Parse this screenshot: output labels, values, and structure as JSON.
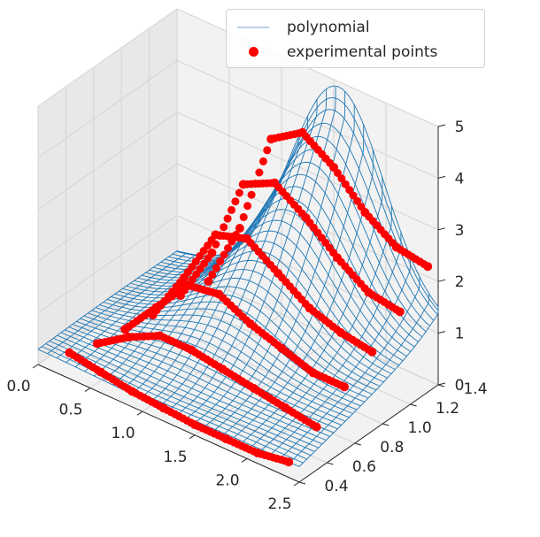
{
  "chart_data": {
    "type": "surface3d",
    "title": "",
    "xlabel": "",
    "ylabel": "",
    "zlabel": "",
    "xlim": [
      0.0,
      2.5
    ],
    "ylim": [
      0.4,
      1.4
    ],
    "zlim": [
      0,
      5
    ],
    "x_ticks": [
      "0.0",
      "0.5",
      "1.0",
      "1.5",
      "2.0",
      "2.5"
    ],
    "y_ticks": [
      "0.4",
      "0.6",
      "0.8",
      "1.0",
      "1.2",
      "1.4"
    ],
    "z_ticks": [
      "0",
      "1",
      "2",
      "3",
      "4",
      "5"
    ],
    "grid": true,
    "legend_position": "top-right",
    "series": [
      {
        "name": "polynomial",
        "kind": "wireframe-surface",
        "color": "#1f77b4",
        "x_range": [
          0.0,
          2.5
        ],
        "y_range": [
          0.4,
          1.45
        ],
        "grid_size": [
          28,
          38
        ],
        "description_values": {
          "z_max": 4.9,
          "z_max_at": [
            1.55,
            1.45
          ]
        }
      },
      {
        "name": "experimental points",
        "kind": "scatter",
        "color": "#ff0000",
        "curves": [
          {
            "y": 0.4,
            "x": [
              0.3,
              0.6,
              0.9,
              1.2,
              1.5,
              1.8,
              2.1,
              2.4
            ],
            "z": [
              0.5,
              0.4,
              0.3,
              0.25,
              0.2,
              0.2,
              0.2,
              0.3
            ]
          },
          {
            "y": 0.6,
            "x": [
              0.3,
              0.6,
              0.9,
              1.2,
              1.5,
              1.8,
              2.1,
              2.4
            ],
            "z": [
              0.3,
              0.7,
              1.0,
              1.0,
              0.9,
              0.8,
              0.7,
              0.6
            ]
          },
          {
            "y": 0.8,
            "x": [
              0.3,
              0.6,
              0.9,
              1.2,
              1.5,
              1.8,
              2.1,
              2.4
            ],
            "z": [
              0.2,
              0.9,
              1.6,
              1.7,
              1.4,
              1.2,
              1.0,
              1.0
            ]
          },
          {
            "y": 1.0,
            "x": [
              0.3,
              0.6,
              0.9,
              1.2,
              1.5,
              1.8,
              2.1,
              2.4
            ],
            "z": [
              0.1,
              1.1,
              2.2,
              2.4,
              2.0,
              1.6,
              1.4,
              1.3
            ]
          },
          {
            "y": 1.2,
            "x": [
              0.3,
              0.6,
              0.9,
              1.2,
              1.5,
              1.8,
              2.1,
              2.4
            ],
            "z": [
              0.1,
              1.2,
              2.8,
              3.1,
              2.7,
              2.2,
              1.8,
              1.7
            ]
          },
          {
            "y": 1.4,
            "x": [
              0.3,
              0.6,
              0.9,
              1.2,
              1.5,
              1.8,
              2.1,
              2.4
            ],
            "z": [
              0.0,
              1.3,
              3.3,
              3.7,
              3.3,
              2.7,
              2.3,
              2.2
            ]
          }
        ]
      }
    ]
  },
  "legend": {
    "items": [
      {
        "label": "polynomial",
        "color": "#b9d2e8"
      },
      {
        "label": "experimental points",
        "color": "#ff0000"
      }
    ]
  },
  "colors": {
    "pane": "#f2f2f2",
    "pane_side": "#e8e8e8",
    "grid": "#d3d3d3",
    "surface": "#1f77b4",
    "points": "#ff0000"
  }
}
